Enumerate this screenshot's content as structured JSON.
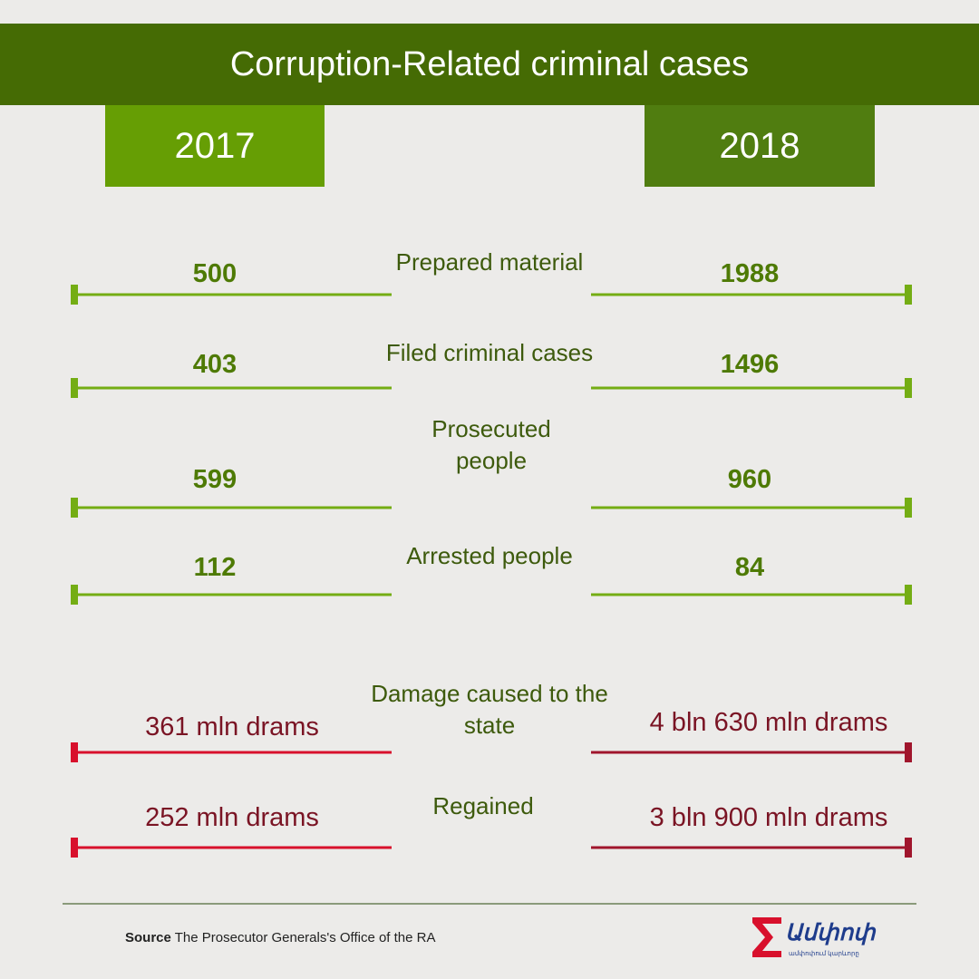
{
  "title": "Corruption-Related criminal cases",
  "colors": {
    "title_bg": "#456b04",
    "year_2017_bg": "#669e04",
    "year_2018_bg": "#507d10",
    "green_line": "#74ad14",
    "green_text": "#4e7a05",
    "label_text": "#3d5a0c",
    "red_line_2017": "#d8102c",
    "red_line_2018": "#a0152c",
    "red_text": "#7a1424"
  },
  "chart_data": {
    "type": "table",
    "columns": [
      "2017",
      "2018"
    ],
    "rows": [
      {
        "label": "Prepared material",
        "v2017": "500",
        "v2018": "1988",
        "color": "green"
      },
      {
        "label": "Filed criminal cases",
        "v2017": "403",
        "v2018": "1496",
        "color": "green"
      },
      {
        "label": "Prosecuted people",
        "v2017": "599",
        "v2018": "960",
        "color": "green"
      },
      {
        "label": "Arrested people",
        "v2017": "112",
        "v2018": "84",
        "color": "green"
      },
      {
        "label": "Damage caused to the state",
        "v2017": "361 mln drams",
        "v2018": "4 bln 630 mln drams",
        "color": "red"
      },
      {
        "label": "Regained",
        "v2017": "252 mln drams",
        "v2018": "3 bln 900 mln drams",
        "color": "red"
      }
    ]
  },
  "source": {
    "label": "Source",
    "text": "The Prosecutor Generals's Office of the RA"
  },
  "logo": {
    "name": "Ամփոփ",
    "tagline": "ամփոփում կարևորը"
  }
}
